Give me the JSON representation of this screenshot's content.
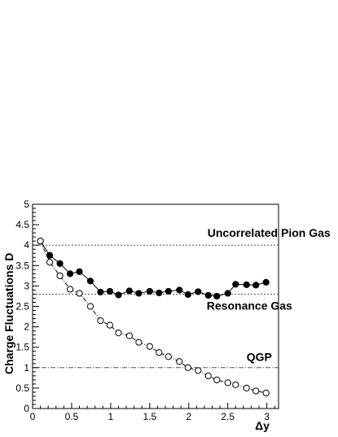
{
  "chart_data": {
    "type": "line",
    "xlabel": "Δy",
    "ylabel": "Charge Fluctuations D",
    "xlim": [
      0,
      3.15
    ],
    "ylim": [
      0,
      5
    ],
    "x_ticks": [
      "0",
      "0.5",
      "1",
      "1.5",
      "2",
      "2.5",
      "3"
    ],
    "y_ticks": [
      "0",
      "0.5",
      "1",
      "1.5",
      "2",
      "2.5",
      "3",
      "3.5",
      "4",
      "4.5",
      "5"
    ],
    "grid": false,
    "series": [
      {
        "marker": "filled-circle",
        "line": "solid",
        "color": "#000000",
        "x": [
          0.1,
          0.22,
          0.35,
          0.48,
          0.6,
          0.74,
          0.87,
          0.99,
          1.1,
          1.24,
          1.36,
          1.5,
          1.62,
          1.74,
          1.88,
          1.99,
          2.12,
          2.25,
          2.36,
          2.5,
          2.6,
          2.74,
          2.86,
          2.99
        ],
        "y": [
          4.1,
          3.75,
          3.55,
          3.3,
          3.35,
          3.12,
          2.85,
          2.87,
          2.78,
          2.88,
          2.82,
          2.87,
          2.83,
          2.87,
          2.9,
          2.79,
          2.86,
          2.77,
          2.75,
          2.82,
          3.04,
          3.03,
          3.02,
          3.09
        ]
      },
      {
        "marker": "open-circle",
        "line": "dashdot",
        "color": "#000000",
        "x": [
          0.1,
          0.22,
          0.35,
          0.48,
          0.6,
          0.74,
          0.87,
          0.99,
          1.1,
          1.24,
          1.36,
          1.5,
          1.62,
          1.74,
          1.88,
          1.99,
          2.12,
          2.25,
          2.36,
          2.5,
          2.6,
          2.74,
          2.86,
          2.99
        ],
        "y": [
          4.1,
          3.58,
          3.25,
          2.92,
          2.82,
          2.5,
          2.15,
          2.04,
          1.85,
          1.78,
          1.62,
          1.52,
          1.37,
          1.27,
          1.15,
          1.0,
          0.93,
          0.8,
          0.7,
          0.63,
          0.58,
          0.5,
          0.43,
          0.38
        ]
      }
    ],
    "reference_lines": [
      {
        "y": 4.0,
        "label": "Uncorrelated Pion Gas",
        "style": "dotted",
        "label_x": 2.24,
        "label_y": 4.2
      },
      {
        "y": 2.8,
        "label": "Resonance Gas",
        "style": "dotted",
        "label_x": 2.23,
        "label_y": 2.42
      },
      {
        "y": 1.0,
        "label": "QGP",
        "style": "dashdot",
        "label_x": 2.74,
        "label_y": 1.17
      }
    ]
  }
}
